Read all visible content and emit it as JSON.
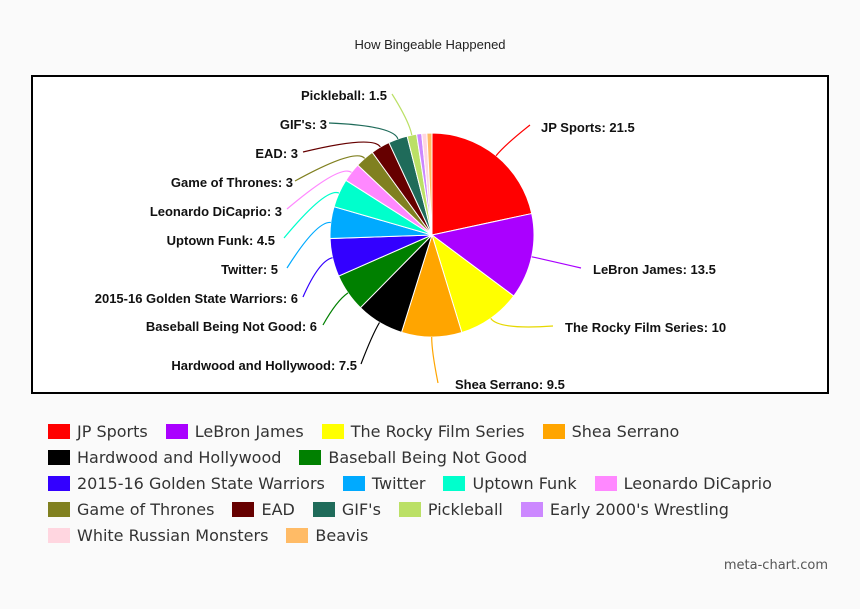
{
  "chart_data": {
    "type": "pie",
    "title": "How Bingeable Happened",
    "slices": [
      {
        "name": "JP Sports",
        "value": 21.5,
        "color": "#ff0000",
        "label": "JP Sports: 21.5"
      },
      {
        "name": "LeBron James",
        "value": 13.5,
        "color": "#aa00ff",
        "label": "LeBron James: 13.5"
      },
      {
        "name": "The Rocky Film Series",
        "value": 10,
        "color": "#ffff00",
        "label": "The Rocky Film Series: 10"
      },
      {
        "name": "Shea Serrano",
        "value": 9.5,
        "color": "#ffa500",
        "label": "Shea Serrano: 9.5"
      },
      {
        "name": "Hardwood and Hollywood",
        "value": 7.5,
        "color": "#000000",
        "label": "Hardwood and Hollywood: 7.5"
      },
      {
        "name": "Baseball Being Not Good",
        "value": 6,
        "color": "#008000",
        "label": "Baseball Being Not Good: 6"
      },
      {
        "name": "2015-16 Golden State Warriors",
        "value": 6,
        "color": "#3300ff",
        "label": "2015-16 Golden State Warriors: 6"
      },
      {
        "name": "Twitter",
        "value": 5,
        "color": "#00aaff",
        "label": "Twitter: 5"
      },
      {
        "name": "Uptown Funk",
        "value": 4.5,
        "color": "#00ffcc",
        "label": "Uptown Funk: 4.5"
      },
      {
        "name": "Leonardo DiCaprio",
        "value": 3,
        "color": "#ff88ff",
        "label": "Leonardo DiCaprio: 3"
      },
      {
        "name": "Game of Thrones",
        "value": 3,
        "color": "#808020",
        "label": "Game of Thrones: 3"
      },
      {
        "name": "EAD",
        "value": 3,
        "color": "#660000",
        "label": "EAD: 3"
      },
      {
        "name": "GIF's",
        "value": 3,
        "color": "#1f6b5a",
        "label": "GIF's: 3"
      },
      {
        "name": "Pickleball",
        "value": 1.5,
        "color": "#bbe066",
        "label": "Pickleball: 1.5"
      },
      {
        "name": "Early 2000's Wrestling",
        "value": 0.8,
        "color": "#cc88ff",
        "label": ""
      },
      {
        "name": "White Russian Monsters",
        "value": 0.8,
        "color": "#ffd6e0",
        "label": ""
      },
      {
        "name": "Beavis",
        "value": 0.8,
        "color": "#ffbb66",
        "label": ""
      }
    ],
    "legend_position": "bottom"
  },
  "legend_rows": [
    [
      "JP Sports",
      "LeBron James",
      "The Rocky Film Series",
      "Shea Serrano"
    ],
    [
      "Hardwood and Hollywood",
      "Baseball Being Not Good"
    ],
    [
      "2015-16 Golden State Warriors",
      "Twitter",
      "Uptown Funk",
      "Leonardo DiCaprio"
    ],
    [
      "Game of Thrones",
      "EAD",
      "GIF's",
      "Pickleball",
      "Early 2000's Wrestling"
    ],
    [
      "White Russian Monsters",
      "Beavis"
    ]
  ],
  "footer": {
    "credit": "meta-chart.com"
  }
}
